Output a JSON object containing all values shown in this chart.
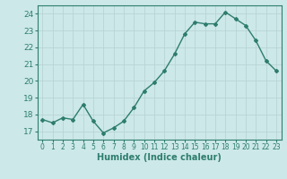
{
  "x": [
    0,
    1,
    2,
    3,
    4,
    5,
    6,
    7,
    8,
    9,
    10,
    11,
    12,
    13,
    14,
    15,
    16,
    17,
    18,
    19,
    20,
    21,
    22,
    23
  ],
  "y": [
    17.7,
    17.5,
    17.8,
    17.7,
    18.6,
    17.6,
    16.9,
    17.2,
    17.6,
    18.4,
    19.4,
    19.9,
    20.6,
    21.6,
    22.8,
    23.5,
    23.4,
    23.4,
    24.1,
    23.7,
    23.3,
    22.4,
    21.2,
    20.6
  ],
  "line_color": "#2e7d6e",
  "marker": "D",
  "markersize": 2,
  "linewidth": 1.0,
  "xlabel": "Humidex (Indice chaleur)",
  "xlabel_fontsize": 7,
  "bg_color": "#cce8e8",
  "grid_color": "#b8d4d4",
  "tick_color": "#2e7d6e",
  "label_color": "#2e7d6e",
  "ylim": [
    16.5,
    24.5
  ],
  "yticks": [
    17,
    18,
    19,
    20,
    21,
    22,
    23,
    24
  ],
  "xlim": [
    -0.5,
    23.5
  ],
  "xticks": [
    0,
    1,
    2,
    3,
    4,
    5,
    6,
    7,
    8,
    9,
    10,
    11,
    12,
    13,
    14,
    15,
    16,
    17,
    18,
    19,
    20,
    21,
    22,
    23
  ]
}
